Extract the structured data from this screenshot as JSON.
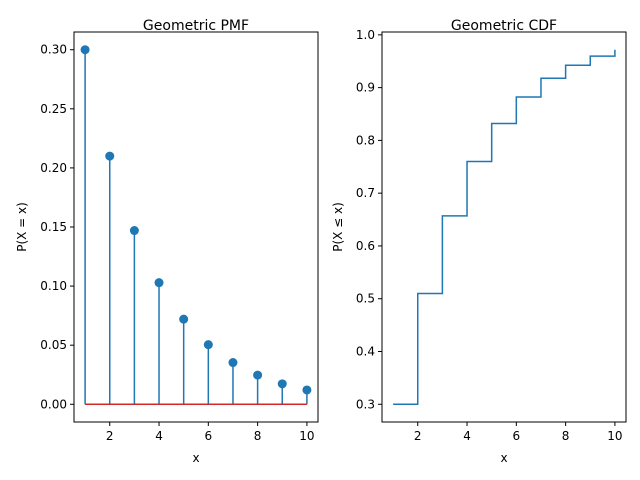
{
  "chart_data": [
    {
      "type": "stem",
      "title": "Geometric PMF",
      "xlabel": "x",
      "ylabel": "P(X = x)",
      "x": [
        1,
        2,
        3,
        4,
        5,
        6,
        7,
        8,
        9,
        10
      ],
      "y": [
        0.3,
        0.21,
        0.147,
        0.1029,
        0.07203,
        0.050421,
        0.0352947,
        0.02470629,
        0.0172944,
        0.01210608
      ],
      "xlim": [
        0.55,
        10.45
      ],
      "ylim": [
        -0.015,
        0.315
      ],
      "xticks": [
        2,
        4,
        6,
        8,
        10
      ],
      "xtick_labels": [
        "2",
        "4",
        "6",
        "8",
        "10"
      ],
      "yticks": [
        0.0,
        0.05,
        0.1,
        0.15,
        0.2,
        0.25,
        0.3
      ],
      "ytick_labels": [
        "0.00",
        "0.05",
        "0.10",
        "0.15",
        "0.20",
        "0.25",
        "0.30"
      ],
      "grid": false,
      "colors": {
        "stem": "#1f77b4",
        "marker": "#1f77b4",
        "baseline": "#d62728"
      }
    },
    {
      "type": "step",
      "title": "Geometric CDF",
      "xlabel": "x",
      "ylabel": "P(X ≤ x)",
      "x": [
        1,
        2,
        3,
        4,
        5,
        6,
        7,
        8,
        9,
        10
      ],
      "y": [
        0.3,
        0.51,
        0.657,
        0.7599,
        0.83193,
        0.882351,
        0.9176457,
        0.94235199,
        0.959646393,
        0.9717524751
      ],
      "step_where": "post",
      "xlim": [
        0.55,
        10.45
      ],
      "ylim": [
        0.2664,
        1.0054
      ],
      "xticks": [
        2,
        4,
        6,
        8,
        10
      ],
      "xtick_labels": [
        "2",
        "4",
        "6",
        "8",
        "10"
      ],
      "yticks": [
        0.3,
        0.4,
        0.5,
        0.6,
        0.7,
        0.8,
        0.9,
        1.0
      ],
      "ytick_labels": [
        "0.3",
        "0.4",
        "0.5",
        "0.6",
        "0.7",
        "0.8",
        "0.9",
        "1.0"
      ],
      "grid": false,
      "colors": {
        "line": "#1f77b4"
      }
    }
  ]
}
